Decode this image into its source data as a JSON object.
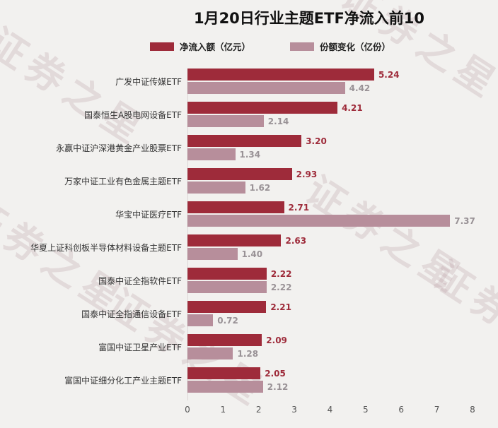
{
  "title": "1月20日行业主题ETF净流入前10",
  "watermark": "证券之星",
  "legend": [
    {
      "label": "净流入额（亿元）",
      "color": "#9e2b3a"
    },
    {
      "label": "份额变化（亿份）",
      "color": "#b78e9b"
    }
  ],
  "chart_data": {
    "type": "bar",
    "orientation": "horizontal",
    "title": "1月20日行业主题ETF净流入前10",
    "categories": [
      "广发中证传媒ETF",
      "国泰恒生A股电网设备ETF",
      "永赢中证沪深港黄金产业股票ETF",
      "万家中证工业有色金属主题ETF",
      "华宝中证医疗ETF",
      "华夏上证科创板半导体材料设备主题ETF",
      "国泰中证全指软件ETF",
      "国泰中证全指通信设备ETF",
      "富国中证卫星产业ETF",
      "富国中证细分化工产业主题ETF"
    ],
    "series": [
      {
        "name": "净流入额（亿元）",
        "color": "#9e2b3a",
        "label_color": "#9e2b3a",
        "values": [
          5.24,
          4.21,
          3.2,
          2.93,
          2.71,
          2.63,
          2.22,
          2.21,
          2.09,
          2.05
        ]
      },
      {
        "name": "份额变化（亿份）",
        "color": "#b78e9b",
        "label_color": "#999296",
        "values": [
          4.42,
          2.14,
          1.34,
          1.62,
          7.37,
          1.4,
          2.22,
          0.72,
          1.28,
          2.12
        ]
      }
    ],
    "xlim": [
      0,
      8
    ],
    "xticks": [
      0,
      1,
      2,
      3,
      4,
      5,
      6,
      7,
      8
    ],
    "grid": false,
    "legend_position": "top"
  }
}
